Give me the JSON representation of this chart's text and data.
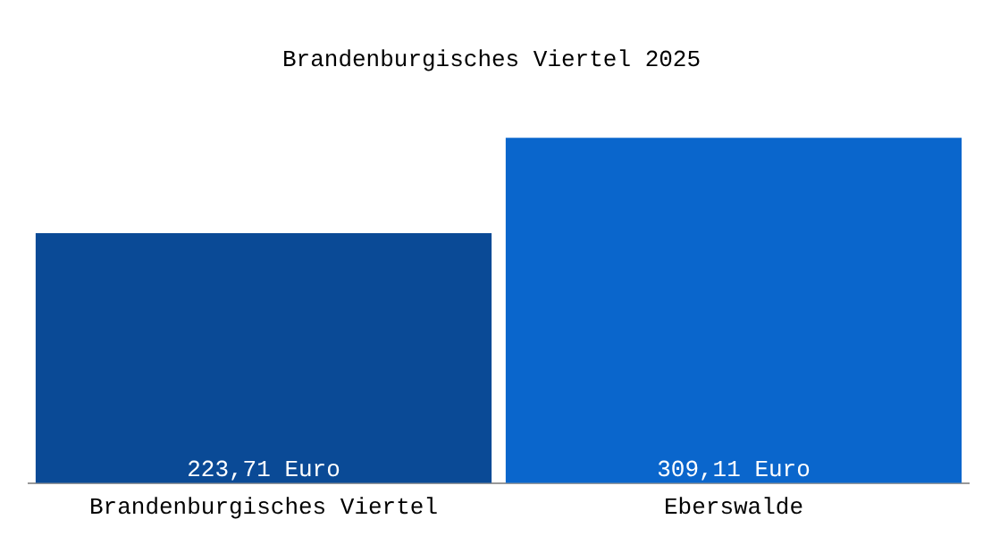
{
  "chart_data": {
    "type": "bar",
    "title": "Brandenburgisches Viertel 2025",
    "categories": [
      "Brandenburgisches Viertel",
      "Eberswalde"
    ],
    "values": [
      223.71,
      309.11
    ],
    "colors": [
      "#0a4a96",
      "#0a66cc"
    ],
    "value_labels": [
      "223,71 Euro",
      "309,11 Euro"
    ],
    "grid": false,
    "legend": false
  }
}
